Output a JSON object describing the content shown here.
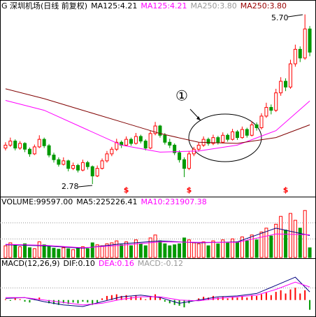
{
  "chart_data": [
    {
      "type": "candlestick",
      "title": "G 深圳机场(日线 前复权)",
      "legend": [
        {
          "text": "MA125:4.21",
          "color": "#000000"
        },
        {
          "text": "MA125:4.21",
          "color": "#ff00ff"
        },
        {
          "text": "MA250:3.80",
          "color": "#999999"
        },
        {
          "text": "MA250:3.80",
          "color": "#990000"
        }
      ],
      "xlim": [
        -1,
        64
      ],
      "ylim": [
        2.6,
        5.9
      ],
      "up_color": "#ff0000",
      "down_color": "#009900",
      "ohlc": [
        [
          3.4,
          3.5,
          3.36,
          3.45
        ],
        [
          3.45,
          3.58,
          3.42,
          3.52
        ],
        [
          3.52,
          3.55,
          3.36,
          3.4
        ],
        [
          3.4,
          3.52,
          3.37,
          3.48
        ],
        [
          3.48,
          3.5,
          3.33,
          3.38
        ],
        [
          3.38,
          3.41,
          3.25,
          3.3
        ],
        [
          3.3,
          3.46,
          3.28,
          3.42
        ],
        [
          3.42,
          3.62,
          3.4,
          3.55
        ],
        [
          3.55,
          3.58,
          3.4,
          3.44
        ],
        [
          3.44,
          3.47,
          3.24,
          3.28
        ],
        [
          3.28,
          3.32,
          3.15,
          3.2
        ],
        [
          3.2,
          3.24,
          3.08,
          3.12
        ],
        [
          3.12,
          3.24,
          3.1,
          3.18
        ],
        [
          3.18,
          3.2,
          3.0,
          3.05
        ],
        [
          3.05,
          3.15,
          3.02,
          3.1
        ],
        [
          3.1,
          3.13,
          2.98,
          3.02
        ],
        [
          3.02,
          3.2,
          3.0,
          3.15
        ],
        [
          3.15,
          3.18,
          3.03,
          3.08
        ],
        [
          3.08,
          3.1,
          2.78,
          2.92
        ],
        [
          2.92,
          3.1,
          2.9,
          3.05
        ],
        [
          3.05,
          3.22,
          3.03,
          3.18
        ],
        [
          3.18,
          3.35,
          3.15,
          3.3
        ],
        [
          3.3,
          3.42,
          3.26,
          3.38
        ],
        [
          3.38,
          3.56,
          3.35,
          3.5
        ],
        [
          3.5,
          3.53,
          3.4,
          3.45
        ],
        [
          3.45,
          3.6,
          3.43,
          3.55
        ],
        [
          3.55,
          3.58,
          3.44,
          3.48
        ],
        [
          3.48,
          3.66,
          3.46,
          3.6
        ],
        [
          3.6,
          3.63,
          3.48,
          3.52
        ],
        [
          3.52,
          3.55,
          3.36,
          3.4
        ],
        [
          3.4,
          3.7,
          3.38,
          3.65
        ],
        [
          3.65,
          3.85,
          3.62,
          3.78
        ],
        [
          3.78,
          3.8,
          3.58,
          3.62
        ],
        [
          3.62,
          3.66,
          3.46,
          3.5
        ],
        [
          3.5,
          3.56,
          3.4,
          3.45
        ],
        [
          3.45,
          3.48,
          3.28,
          3.32
        ],
        [
          3.32,
          3.36,
          3.15,
          3.2
        ],
        [
          3.2,
          3.24,
          2.9,
          3.05
        ],
        [
          3.05,
          3.35,
          3.02,
          3.3
        ],
        [
          3.3,
          3.42,
          3.26,
          3.38
        ],
        [
          3.38,
          3.5,
          3.34,
          3.45
        ],
        [
          3.45,
          3.6,
          3.42,
          3.55
        ],
        [
          3.55,
          3.58,
          3.44,
          3.48
        ],
        [
          3.48,
          3.63,
          3.45,
          3.58
        ],
        [
          3.58,
          3.61,
          3.46,
          3.5
        ],
        [
          3.5,
          3.67,
          3.48,
          3.62
        ],
        [
          3.62,
          3.65,
          3.51,
          3.55
        ],
        [
          3.55,
          3.73,
          3.53,
          3.68
        ],
        [
          3.68,
          3.71,
          3.54,
          3.58
        ],
        [
          3.58,
          3.77,
          3.56,
          3.72
        ],
        [
          3.72,
          3.75,
          3.58,
          3.62
        ],
        [
          3.62,
          3.86,
          3.6,
          3.8
        ],
        [
          3.8,
          3.84,
          3.7,
          3.75
        ],
        [
          3.75,
          4.0,
          3.72,
          3.95
        ],
        [
          3.95,
          4.18,
          3.92,
          4.1
        ],
        [
          4.1,
          4.15,
          3.98,
          4.05
        ],
        [
          4.05,
          4.42,
          4.02,
          4.35
        ],
        [
          4.35,
          4.62,
          4.3,
          4.55
        ],
        [
          4.55,
          4.6,
          4.38,
          4.45
        ],
        [
          4.45,
          4.92,
          4.42,
          4.85
        ],
        [
          4.85,
          5.18,
          4.8,
          5.1
        ],
        [
          5.1,
          5.15,
          4.88,
          4.95
        ],
        [
          4.95,
          5.7,
          4.92,
          5.45
        ],
        [
          5.45,
          5.5,
          4.98,
          5.05
        ]
      ],
      "lines": [
        {
          "color": "#ff00ff",
          "x": [
            0,
            8,
            16,
            24,
            32,
            40,
            48,
            56,
            63
          ],
          "values": [
            4.22,
            4.05,
            3.75,
            3.45,
            3.33,
            3.35,
            3.45,
            3.7,
            4.21
          ]
        },
        {
          "color": "#800000",
          "x": [
            0,
            8,
            16,
            24,
            32,
            40,
            48,
            56,
            63
          ],
          "values": [
            4.42,
            4.25,
            4.05,
            3.85,
            3.65,
            3.5,
            3.48,
            3.58,
            3.8
          ]
        }
      ],
      "annotations": {
        "low": "2.78",
        "high": "5.70",
        "circle": "①"
      },
      "event_markers": {
        "label": "$",
        "x": [
          25,
          38,
          58
        ],
        "color": "#ff0000"
      }
    },
    {
      "type": "volume",
      "legend": [
        {
          "text": "VOLUME:99597.00",
          "color": "#000000"
        },
        {
          "text": "MA5:225226.41",
          "color": "#000000"
        },
        {
          "text": "MA10:231907.38",
          "color": "#ff00ff"
        }
      ],
      "xlim": [
        -1,
        64
      ],
      "ylim": [
        0,
        500000
      ],
      "values": [
        120000,
        150000,
        130000,
        110000,
        140000,
        100000,
        90000,
        160000,
        130000,
        110000,
        95000,
        85000,
        100000,
        90000,
        80000,
        95000,
        110000,
        90000,
        150000,
        130000,
        120000,
        140000,
        150000,
        170000,
        130000,
        160000,
        120000,
        180000,
        140000,
        120000,
        200000,
        230000,
        170000,
        140000,
        120000,
        130000,
        140000,
        200000,
        180000,
        150000,
        140000,
        160000,
        120000,
        170000,
        140000,
        180000,
        150000,
        190000,
        160000,
        210000,
        170000,
        230000,
        180000,
        260000,
        300000,
        220000,
        340000,
        420000,
        280000,
        450000,
        380000,
        300000,
        480000,
        99597
      ],
      "lines": [
        {
          "color": "#000080",
          "x": [
            0,
            8,
            16,
            24,
            32,
            40,
            48,
            56,
            63
          ],
          "values": [
            130000,
            120000,
            95000,
            140000,
            170000,
            150000,
            160000,
            300000,
            225226.41
          ]
        },
        {
          "color": "#ff00ff",
          "x": [
            0,
            8,
            16,
            24,
            32,
            40,
            48,
            56,
            63
          ],
          "values": [
            135000,
            125000,
            100000,
            125000,
            160000,
            155000,
            155000,
            240000,
            231907.38
          ]
        }
      ]
    },
    {
      "type": "macd",
      "legend": [
        {
          "text": "MACD(12,26,9)",
          "color": "#000000"
        },
        {
          "text": "DIF:0.10",
          "color": "#000000"
        },
        {
          "text": "DEA:0.16",
          "color": "#ff00ff"
        },
        {
          "text": "MACD:-0.12",
          "color": "#999999"
        }
      ],
      "xlim": [
        -1,
        64
      ],
      "ylim": [
        -0.2,
        0.35
      ],
      "up_color": "#ff0000",
      "down_color": "#009900",
      "values": [
        0.01,
        -0.01,
        0.02,
        0.01,
        -0.02,
        -0.03,
        0.01,
        0.03,
        0.0,
        -0.04,
        -0.05,
        -0.06,
        -0.04,
        -0.05,
        -0.03,
        -0.04,
        -0.02,
        -0.03,
        -0.06,
        -0.03,
        0.02,
        0.05,
        0.06,
        0.07,
        0.05,
        0.06,
        0.04,
        0.06,
        0.03,
        0.01,
        0.05,
        0.07,
        0.03,
        -0.02,
        -0.04,
        -0.06,
        -0.07,
        -0.09,
        -0.04,
        0.0,
        0.02,
        0.04,
        0.03,
        0.05,
        0.03,
        0.04,
        0.02,
        0.04,
        0.03,
        0.05,
        0.03,
        0.06,
        0.05,
        0.07,
        0.09,
        0.06,
        0.1,
        0.12,
        0.08,
        0.13,
        0.15,
        0.08,
        0.12,
        -0.12
      ],
      "lines": [
        {
          "color": "#000080",
          "x": [
            0,
            4,
            8,
            12,
            16,
            20,
            24,
            28,
            32,
            36,
            40,
            44,
            48,
            52,
            56,
            60,
            63
          ],
          "values": [
            0.02,
            0.03,
            -0.02,
            -0.06,
            -0.08,
            -0.02,
            0.04,
            0.06,
            0.03,
            -0.04,
            0.0,
            0.04,
            0.05,
            0.08,
            0.18,
            0.28,
            0.1
          ]
        },
        {
          "color": "#ff00ff",
          "x": [
            0,
            4,
            8,
            12,
            16,
            20,
            24,
            28,
            32,
            36,
            40,
            44,
            48,
            52,
            56,
            60,
            63
          ],
          "values": [
            0.03,
            0.03,
            0.0,
            -0.03,
            -0.06,
            -0.04,
            0.01,
            0.04,
            0.04,
            0.0,
            -0.01,
            0.02,
            0.04,
            0.06,
            0.13,
            0.22,
            0.16
          ]
        }
      ]
    }
  ]
}
